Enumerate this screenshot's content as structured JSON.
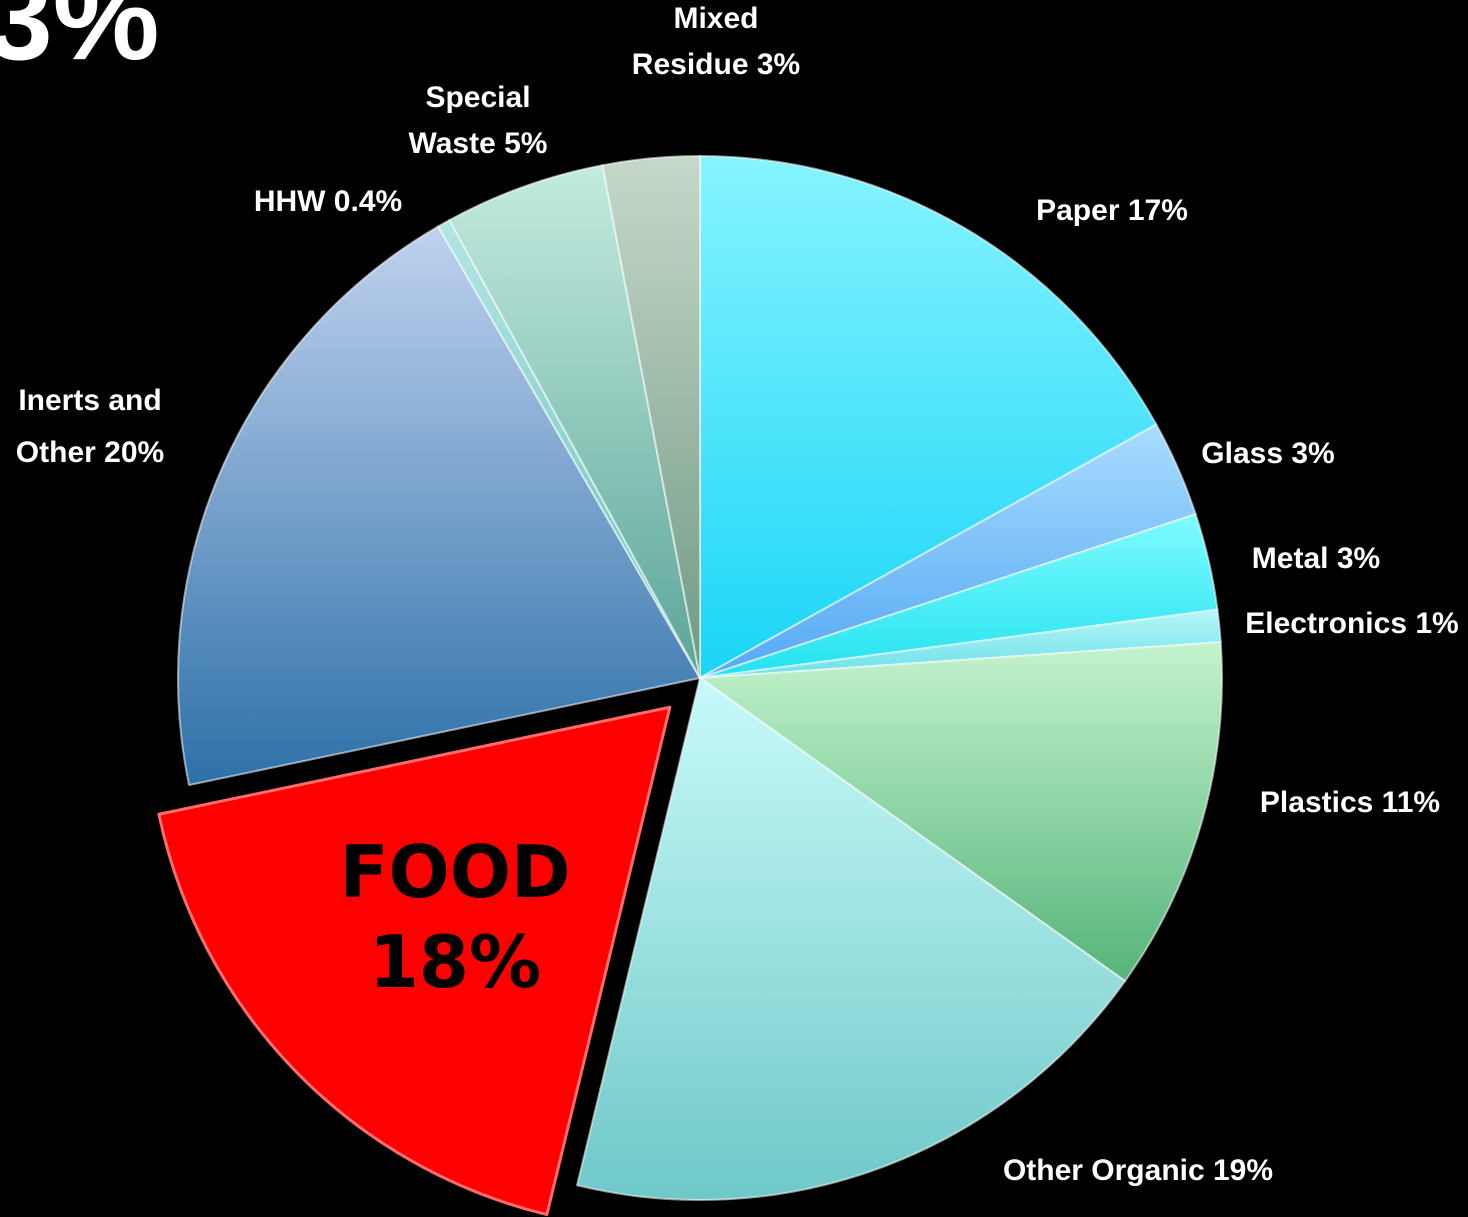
{
  "corner_text": "3%",
  "chart_data": {
    "type": "pie",
    "title": "",
    "slices": [
      {
        "label": "Paper 17%",
        "value": 17,
        "color": "#19d5f7",
        "color_light": "#86f4ff",
        "lines": [
          "Paper 17%"
        ]
      },
      {
        "label": "Glass 3%",
        "value": 3,
        "color": "#55a8f3",
        "color_light": "#a8dcff",
        "lines": [
          "Glass 3%"
        ]
      },
      {
        "label": "Metal 3%",
        "value": 3,
        "color": "#22e2ef",
        "color_light": "#7ffbff",
        "lines": [
          "Metal 3%"
        ]
      },
      {
        "label": "Electronics 1%",
        "value": 1,
        "color": "#6ae0e8",
        "color_light": "#b4f6f8",
        "lines": [
          "Electronics 1%"
        ]
      },
      {
        "label": "Plastics 11%",
        "value": 11,
        "color": "#55b47a",
        "color_light": "#c4f3cd",
        "lines": [
          "Plastics 11%"
        ]
      },
      {
        "label": "Other Organic 19%",
        "value": 19,
        "color": "#6fc8c8",
        "color_light": "#c8fafa",
        "lines": [
          "Other Organic 19%"
        ]
      },
      {
        "label": "FOOD 18%",
        "value": 18,
        "color": "#ff0000",
        "color_light": "#ff0000",
        "exploded": true,
        "lines": [
          "FOOD",
          "18%"
        ]
      },
      {
        "label": "Inerts and Other 20%",
        "value": 20,
        "color": "#2d70a8",
        "color_light": "#c0d2ef",
        "lines": [
          "Inerts and",
          "Other 20%"
        ]
      },
      {
        "label": "HHW 0.4%",
        "value": 0.4,
        "color": "#68c3bd",
        "color_light": "#b2e6e2",
        "lines": [
          "HHW 0.4%"
        ]
      },
      {
        "label": "Special Waste 5%",
        "value": 5,
        "color": "#5aa597",
        "color_light": "#c4ebdf",
        "lines": [
          "Special",
          "Waste 5%"
        ]
      },
      {
        "label": "Mixed Residue 3%",
        "value": 3,
        "color": "#6f9a82",
        "color_light": "#c6d8c8",
        "lines": [
          "Mixed",
          "Residue 3%"
        ]
      }
    ]
  }
}
